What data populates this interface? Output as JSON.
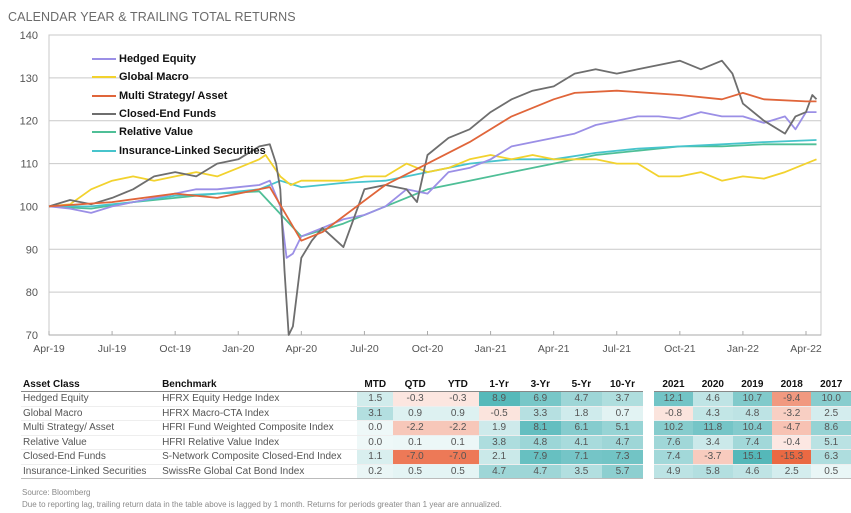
{
  "title": "CALENDAR YEAR & TRAILING TOTAL RETURNS",
  "chart_data": {
    "type": "line",
    "title": "CALENDAR YEAR & TRAILING TOTAL RETURNS",
    "xlabel": "",
    "ylabel": "",
    "x_unit": "months since Apr-19",
    "xlim": [
      0,
      37.5
    ],
    "ylim": [
      70,
      140
    ],
    "yticks": [
      70,
      80,
      90,
      100,
      110,
      120,
      130,
      140
    ],
    "xticks": [
      {
        "pos": 0,
        "label": "Apr-19"
      },
      {
        "pos": 3,
        "label": "Jul-19"
      },
      {
        "pos": 6,
        "label": "Oct-19"
      },
      {
        "pos": 9,
        "label": "Jan-20"
      },
      {
        "pos": 12,
        "label": "Apr-20"
      },
      {
        "pos": 15,
        "label": "Jul-20"
      },
      {
        "pos": 18,
        "label": "Oct-20"
      },
      {
        "pos": 21,
        "label": "Jan-21"
      },
      {
        "pos": 24,
        "label": "Apr-21"
      },
      {
        "pos": 27,
        "label": "Jul-21"
      },
      {
        "pos": 30,
        "label": "Oct-21"
      },
      {
        "pos": 33,
        "label": "Jan-22"
      },
      {
        "pos": 36,
        "label": "Apr-22"
      }
    ],
    "grid": true,
    "legend_position": "top-left",
    "series": [
      {
        "name": "Hedged Equity",
        "color": "#9b8fe6",
        "points": [
          [
            0,
            100
          ],
          [
            1,
            99.5
          ],
          [
            2,
            98.5
          ],
          [
            3,
            100
          ],
          [
            5,
            102
          ],
          [
            7,
            104
          ],
          [
            8,
            104
          ],
          [
            10,
            105
          ],
          [
            10.5,
            106
          ],
          [
            11,
            100
          ],
          [
            11.3,
            88
          ],
          [
            11.6,
            89
          ],
          [
            12,
            93
          ],
          [
            13,
            95
          ],
          [
            14,
            97
          ],
          [
            15,
            98
          ],
          [
            16,
            100
          ],
          [
            17,
            104
          ],
          [
            18,
            103
          ],
          [
            19,
            108
          ],
          [
            20,
            109
          ],
          [
            21,
            111
          ],
          [
            22,
            114
          ],
          [
            23,
            115
          ],
          [
            24,
            116
          ],
          [
            25,
            117
          ],
          [
            26,
            119
          ],
          [
            27,
            120
          ],
          [
            28,
            121
          ],
          [
            29,
            121
          ],
          [
            30,
            120.5
          ],
          [
            31,
            122
          ],
          [
            32,
            121
          ],
          [
            33,
            121
          ],
          [
            34,
            119.5
          ],
          [
            35,
            121
          ],
          [
            35.5,
            118
          ],
          [
            36,
            122
          ],
          [
            36.5,
            122
          ]
        ]
      },
      {
        "name": "Global  Macro",
        "color": "#f2d22e",
        "points": [
          [
            0,
            100
          ],
          [
            1,
            100.5
          ],
          [
            2,
            104
          ],
          [
            3,
            106
          ],
          [
            4,
            107
          ],
          [
            5,
            106
          ],
          [
            6,
            107
          ],
          [
            7,
            108
          ],
          [
            8,
            107
          ],
          [
            9,
            109
          ],
          [
            10,
            111
          ],
          [
            10.3,
            112
          ],
          [
            11,
            107
          ],
          [
            11.5,
            105
          ],
          [
            12,
            106
          ],
          [
            13,
            106
          ],
          [
            14,
            106
          ],
          [
            15,
            107
          ],
          [
            16,
            107
          ],
          [
            17,
            110
          ],
          [
            18,
            108
          ],
          [
            19,
            109
          ],
          [
            20,
            111
          ],
          [
            21,
            112
          ],
          [
            22,
            111
          ],
          [
            23,
            112
          ],
          [
            24,
            111
          ],
          [
            25,
            111
          ],
          [
            26,
            111
          ],
          [
            27,
            110
          ],
          [
            28,
            110
          ],
          [
            29,
            107
          ],
          [
            30,
            107
          ],
          [
            31,
            108
          ],
          [
            32,
            106
          ],
          [
            33,
            107
          ],
          [
            34,
            106.5
          ],
          [
            35,
            108
          ],
          [
            36,
            110
          ],
          [
            36.5,
            111
          ]
        ]
      },
      {
        "name": "Multi Strategy/ Asset",
        "color": "#e0653a",
        "points": [
          [
            0,
            100
          ],
          [
            3,
            101
          ],
          [
            6,
            103
          ],
          [
            8,
            102
          ],
          [
            10,
            104
          ],
          [
            10.5,
            104.5
          ],
          [
            12,
            92
          ],
          [
            13,
            94
          ],
          [
            16,
            105
          ],
          [
            18,
            110
          ],
          [
            20,
            115
          ],
          [
            22,
            121
          ],
          [
            24,
            125
          ],
          [
            25,
            126.5
          ],
          [
            27,
            127
          ],
          [
            30,
            126
          ],
          [
            32,
            125
          ],
          [
            33,
            126.5
          ],
          [
            34,
            125
          ],
          [
            36,
            124.5
          ],
          [
            36.5,
            124.5
          ]
        ]
      },
      {
        "name": "Closed-End Funds",
        "color": "#6e6e6e",
        "points": [
          [
            0,
            100
          ],
          [
            1,
            101.5
          ],
          [
            2,
            100.5
          ],
          [
            3,
            102
          ],
          [
            4,
            104
          ],
          [
            5,
            107
          ],
          [
            6,
            108
          ],
          [
            7,
            107
          ],
          [
            8,
            110
          ],
          [
            9,
            111
          ],
          [
            10,
            114
          ],
          [
            10.5,
            114.5
          ],
          [
            10.8,
            110
          ],
          [
            11,
            104
          ],
          [
            11.2,
            85
          ],
          [
            11.4,
            70
          ],
          [
            11.6,
            72
          ],
          [
            12,
            88
          ],
          [
            12.5,
            92
          ],
          [
            13,
            95
          ],
          [
            14,
            90.5
          ],
          [
            15,
            104
          ],
          [
            16,
            105
          ],
          [
            17,
            104
          ],
          [
            17.5,
            101
          ],
          [
            18,
            112
          ],
          [
            19,
            116
          ],
          [
            20,
            118
          ],
          [
            21,
            122
          ],
          [
            22,
            125
          ],
          [
            23,
            127
          ],
          [
            24,
            128
          ],
          [
            25,
            131
          ],
          [
            26,
            132
          ],
          [
            27,
            131
          ],
          [
            28,
            132
          ],
          [
            29,
            133
          ],
          [
            30,
            134
          ],
          [
            31,
            132
          ],
          [
            32,
            134
          ],
          [
            32.5,
            131
          ],
          [
            33,
            124
          ],
          [
            34,
            120
          ],
          [
            35,
            117
          ],
          [
            35.5,
            121
          ],
          [
            36,
            122
          ],
          [
            36.3,
            126
          ],
          [
            36.5,
            125
          ]
        ]
      },
      {
        "name": "Relative Value",
        "color": "#4fbf97",
        "points": [
          [
            0,
            100
          ],
          [
            2,
            99.5
          ],
          [
            4,
            101
          ],
          [
            6,
            102
          ],
          [
            8,
            103
          ],
          [
            10,
            103.5
          ],
          [
            12,
            93
          ],
          [
            14,
            96
          ],
          [
            16,
            100
          ],
          [
            18,
            104
          ],
          [
            20,
            106
          ],
          [
            22,
            108
          ],
          [
            24,
            110
          ],
          [
            26,
            112
          ],
          [
            28,
            113
          ],
          [
            30,
            114
          ],
          [
            32,
            114
          ],
          [
            34,
            114.5
          ],
          [
            36.5,
            114.5
          ]
        ]
      },
      {
        "name": "Insurance-Linked Securities",
        "color": "#47c4cc",
        "points": [
          [
            0,
            100
          ],
          [
            2,
            100
          ],
          [
            4,
            101
          ],
          [
            6,
            102.5
          ],
          [
            8,
            103
          ],
          [
            10,
            104
          ],
          [
            11,
            106
          ],
          [
            12,
            104.5
          ],
          [
            14,
            105.5
          ],
          [
            16,
            106
          ],
          [
            18,
            108
          ],
          [
            20,
            110
          ],
          [
            22,
            111
          ],
          [
            24,
            111
          ],
          [
            26,
            112.5
          ],
          [
            28,
            113.5
          ],
          [
            30,
            114
          ],
          [
            32,
            114.5
          ],
          [
            34,
            115
          ],
          [
            36.5,
            115.5
          ]
        ]
      }
    ]
  },
  "table": {
    "headers": [
      "Asset Class",
      "Benchmark",
      "MTD",
      "QTD",
      "YTD",
      "1-Yr",
      "3-Yr",
      "5-Yr",
      "10-Yr",
      "2021",
      "2020",
      "2019",
      "2018",
      "2017"
    ],
    "rows": [
      {
        "asset": "Hedged Equity",
        "benchmark": "HFRX Equity Hedge Index",
        "values": [
          "1.5",
          "-0.3",
          "-0.3",
          "8.9",
          "6.9",
          "4.7",
          "3.7",
          "12.1",
          "4.6",
          "10.7",
          "-9.4",
          "10.0"
        ]
      },
      {
        "asset": "Global  Macro",
        "benchmark": "HFRX Macro-CTA Index",
        "values": [
          "3.1",
          "0.9",
          "0.9",
          "-0.5",
          "3.3",
          "1.8",
          "0.7",
          "-0.8",
          "4.3",
          "4.8",
          "-3.2",
          "2.5"
        ]
      },
      {
        "asset": "Multi Strategy/ Asset",
        "benchmark": "HFRI Fund Weighted Composite Index",
        "values": [
          "0.0",
          "-2.2",
          "-2.2",
          "1.9",
          "8.1",
          "6.1",
          "5.1",
          "10.2",
          "11.8",
          "10.4",
          "-4.7",
          "8.6"
        ]
      },
      {
        "asset": "Relative Value",
        "benchmark": "HFRI Relative Value Index",
        "values": [
          "0.0",
          "0.1",
          "0.1",
          "3.8",
          "4.8",
          "4.1",
          "4.7",
          "7.6",
          "3.4",
          "7.4",
          "-0.4",
          "5.1"
        ]
      },
      {
        "asset": "Closed-End Funds",
        "benchmark": "S-Network Composite Closed-End Index",
        "values": [
          "1.1",
          "-7.0",
          "-7.0",
          "2.1",
          "7.9",
          "7.1",
          "7.3",
          "7.4",
          "-3.7",
          "15.1",
          "-15.3",
          "6.3"
        ]
      },
      {
        "asset": "Insurance-Linked Securities",
        "benchmark": "SwissRe Global Cat Bond Index",
        "values": [
          "0.2",
          "0.5",
          "0.5",
          "4.7",
          "4.7",
          "3.5",
          "5.7",
          "4.9",
          "5.8",
          "4.6",
          "2.5",
          "0.5"
        ]
      }
    ],
    "scale_colors": {
      "positive": "#2aa6a8",
      "negative": "#e8582e"
    }
  },
  "footnotes": {
    "source": "Source: Bloomberg",
    "note": "Due to reporting lag, trailing return data in the table above is lagged by 1 month. Returns for periods greater than 1 year are annualized."
  }
}
